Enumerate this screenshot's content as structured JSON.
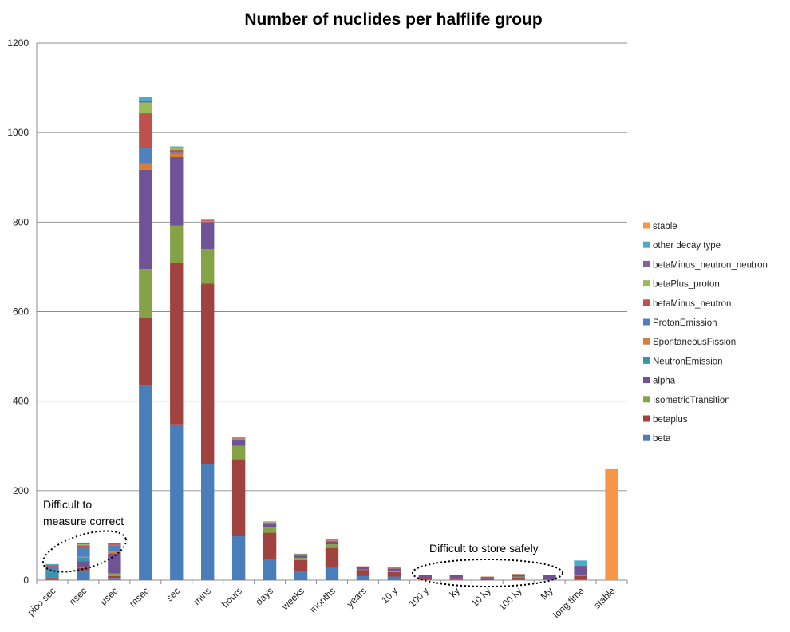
{
  "chart_data": {
    "type": "bar",
    "stacked": true,
    "title": "Number of nuclides per halflife group",
    "xlabel": "",
    "ylabel": "",
    "ylim": [
      0,
      1200
    ],
    "yticks": [
      0,
      200,
      400,
      600,
      800,
      1000,
      1200
    ],
    "grid": true,
    "legend_position": "right",
    "categories": [
      "pico sec",
      "nsec",
      "µsec",
      "msec",
      "sec",
      "mins",
      "hours",
      "days",
      "weeks",
      "months",
      "years",
      "10 y",
      "100 y",
      "ky",
      "10 ky",
      "100 ky",
      "My",
      "long time",
      "stable"
    ],
    "series": [
      {
        "name": "beta",
        "color": "#4A7EBB",
        "values": [
          3,
          22,
          5,
          435,
          348,
          260,
          98,
          48,
          20,
          27,
          9,
          8,
          2,
          2,
          0,
          2,
          2,
          3,
          0
        ]
      },
      {
        "name": "betaplus",
        "color": "#A0423D",
        "values": [
          2,
          6,
          4,
          150,
          360,
          403,
          172,
          58,
          25,
          45,
          14,
          10,
          5,
          3,
          4,
          4,
          0,
          6,
          0
        ]
      },
      {
        "name": "IsometricTransition",
        "color": "#84A246",
        "values": [
          0,
          2,
          6,
          110,
          84,
          77,
          30,
          12,
          5,
          8,
          1,
          2,
          0,
          0,
          0,
          2,
          0,
          1,
          0
        ]
      },
      {
        "name": "alpha",
        "color": "#6F5396",
        "values": [
          1,
          12,
          45,
          222,
          153,
          60,
          12,
          8,
          5,
          7,
          6,
          6,
          4,
          6,
          3,
          5,
          9,
          22,
          0
        ]
      },
      {
        "name": "NeutronEmission",
        "color": "#3D94AA",
        "values": [
          12,
          8,
          0,
          0,
          0,
          0,
          0,
          0,
          0,
          0,
          0,
          0,
          0,
          0,
          0,
          0,
          0,
          0,
          0
        ]
      },
      {
        "name": "SpontaneousFission",
        "color": "#D57E3A",
        "values": [
          0,
          2,
          4,
          14,
          8,
          2,
          3,
          2,
          1,
          1,
          1,
          1,
          1,
          1,
          1,
          1,
          1,
          0,
          0
        ]
      },
      {
        "name": "ProtonEmission",
        "color": "#4F81BD",
        "values": [
          12,
          22,
          14,
          34,
          2,
          0,
          0,
          0,
          0,
          0,
          0,
          0,
          0,
          0,
          0,
          0,
          0,
          0,
          0
        ]
      },
      {
        "name": "betaMinus_neutron",
        "color": "#C0504D",
        "values": [
          2,
          4,
          2,
          78,
          6,
          2,
          2,
          1,
          1,
          1,
          0,
          1,
          0,
          0,
          0,
          0,
          0,
          0,
          0
        ]
      },
      {
        "name": "betaPlus_proton",
        "color": "#9BBB59",
        "values": [
          0,
          2,
          0,
          24,
          4,
          2,
          1,
          1,
          1,
          1,
          0,
          0,
          0,
          0,
          0,
          0,
          0,
          0,
          0
        ]
      },
      {
        "name": "betaMinus_neutron_neutron",
        "color": "#8064A2",
        "values": [
          1,
          2,
          2,
          4,
          2,
          1,
          1,
          1,
          1,
          1,
          0,
          1,
          0,
          0,
          0,
          0,
          0,
          0,
          0
        ]
      },
      {
        "name": "other decay type",
        "color": "#4BACC6",
        "values": [
          3,
          2,
          0,
          8,
          2,
          0,
          0,
          0,
          0,
          0,
          0,
          0,
          0,
          0,
          0,
          0,
          0,
          12,
          0
        ]
      },
      {
        "name": "stable",
        "color": "#F79646",
        "values": [
          0,
          0,
          0,
          0,
          0,
          0,
          0,
          0,
          0,
          0,
          0,
          0,
          0,
          0,
          0,
          0,
          0,
          0,
          248
        ]
      }
    ],
    "annotations": [
      {
        "text_lines": [
          "Difficult to",
          "measure correct"
        ],
        "encircles": [
          "pico sec",
          "nsec",
          "µsec"
        ]
      },
      {
        "text_lines": [
          "Difficult to store safely"
        ],
        "encircles": [
          "100 y",
          "ky",
          "10 ky",
          "100 ky",
          "My"
        ]
      }
    ]
  }
}
